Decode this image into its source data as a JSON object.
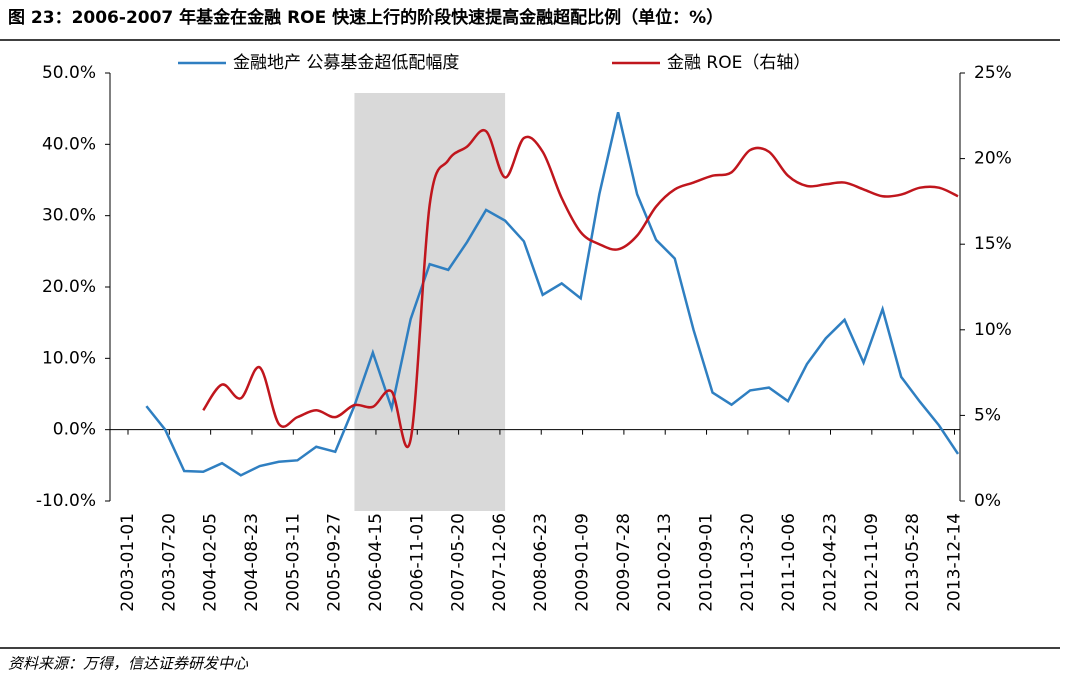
{
  "chart_data": {
    "type": "line",
    "title": "图 23：2006-2007 年基金在金融 ROE 快速上行的阶段快速提高金融超配比例（单位：%）",
    "source": "资料来源：万得，信达证券研发中心",
    "x": [
      "2003-03-31",
      "2003-06-30",
      "2003-09-30",
      "2003-12-31",
      "2004-03-31",
      "2004-06-30",
      "2004-09-30",
      "2004-12-31",
      "2005-03-31",
      "2005-06-30",
      "2005-09-30",
      "2005-12-31",
      "2006-03-31",
      "2006-06-30",
      "2006-09-30",
      "2006-12-31",
      "2007-03-31",
      "2007-06-30",
      "2007-09-30",
      "2007-12-31",
      "2008-03-31",
      "2008-06-30",
      "2008-09-30",
      "2008-12-31",
      "2009-03-31",
      "2009-06-30",
      "2009-09-30",
      "2009-12-31",
      "2010-03-31",
      "2010-06-30",
      "2010-09-30",
      "2010-12-31",
      "2011-03-31",
      "2011-06-30",
      "2011-09-30",
      "2011-12-31",
      "2012-03-31",
      "2012-06-30",
      "2012-09-30",
      "2012-12-31",
      "2013-03-31",
      "2013-06-30",
      "2013-09-30",
      "2013-12-31"
    ],
    "xlim": [
      "2003-01-01",
      "2013-12-31"
    ],
    "xticks": [
      "2003-01-01",
      "2003-07-20",
      "2004-02-05",
      "2004-08-23",
      "2005-03-11",
      "2005-09-27",
      "2006-04-15",
      "2006-11-01",
      "2007-05-20",
      "2007-12-06",
      "2008-06-23",
      "2009-01-09",
      "2009-07-28",
      "2010-02-13",
      "2010-09-01",
      "2011-03-20",
      "2011-10-06",
      "2012-04-23",
      "2012-11-09",
      "2013-05-28",
      "2013-12-14"
    ],
    "shaded_range": [
      "2006-01-01",
      "2007-12-31"
    ],
    "ylim": [
      -10,
      50
    ],
    "yticks": [
      {
        "value": -10,
        "label": "-10.0%"
      },
      {
        "value": 0,
        "label": "0.0%"
      },
      {
        "value": 10,
        "label": "10.0%"
      },
      {
        "value": 20,
        "label": "20.0%"
      },
      {
        "value": 30,
        "label": "30.0%"
      },
      {
        "value": 40,
        "label": "40.0%"
      },
      {
        "value": 50,
        "label": "50.0%"
      }
    ],
    "y2lim": [
      0,
      25
    ],
    "y2ticks": [
      {
        "value": 0,
        "label": "0%"
      },
      {
        "value": 5,
        "label": "5%"
      },
      {
        "value": 10,
        "label": "10%"
      },
      {
        "value": 15,
        "label": "15%"
      },
      {
        "value": 20,
        "label": "20%"
      },
      {
        "value": 25,
        "label": "25%"
      }
    ],
    "series": [
      {
        "name": "金融地产 公募基金超低配幅度",
        "color": "#2f7fc1",
        "values": [
          3.3,
          0.0,
          -5.8,
          -5.9,
          -4.7,
          -6.4,
          -5.1,
          -4.5,
          -4.3,
          -2.4,
          -3.1,
          3.3,
          10.8,
          3.0,
          15.5,
          23.2,
          22.4,
          26.3,
          30.8,
          29.3,
          26.4,
          18.9,
          20.5,
          18.4,
          33.0,
          44.5,
          33.0,
          26.6,
          24.0,
          14.0,
          5.2,
          3.5,
          5.5,
          5.9,
          4.0,
          9.2,
          12.8,
          15.4,
          9.4,
          16.9,
          7.4,
          3.9,
          0.6,
          -3.4
        ]
      },
      {
        "name": "金融 ROE（右轴）",
        "color": "#c0161d",
        "axis": "y2",
        "smooth": true,
        "values": [
          null,
          null,
          null,
          5.3,
          6.8,
          6.0,
          7.8,
          4.5,
          4.9,
          5.3,
          4.9,
          5.6,
          5.5,
          6.4,
          3.6,
          17.3,
          19.9,
          20.7,
          21.6,
          18.9,
          21.2,
          20.4,
          17.7,
          15.7,
          15.0,
          14.7,
          15.5,
          17.2,
          18.2,
          18.6,
          19.0,
          19.2,
          20.5,
          20.4,
          19.0,
          18.4,
          18.5,
          18.6,
          18.2,
          17.8,
          17.9,
          18.3,
          18.3,
          17.8
        ]
      }
    ]
  }
}
